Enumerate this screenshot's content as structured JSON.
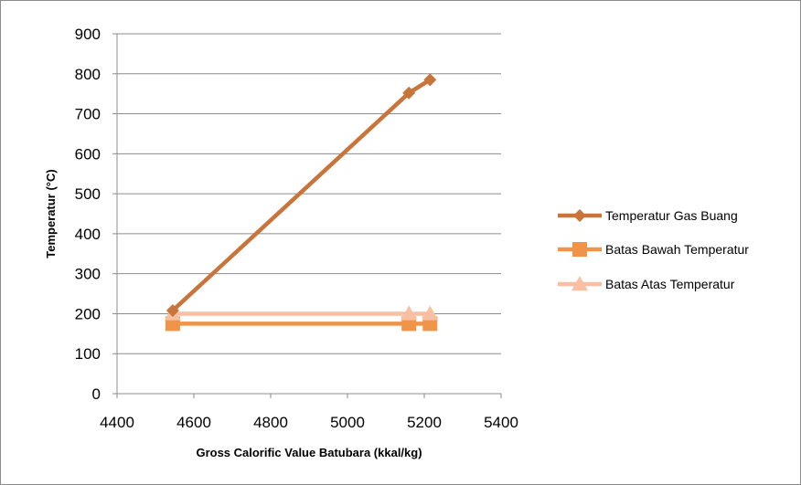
{
  "chart_data": {
    "type": "line",
    "xlabel": "Gross Calorific Value Batubara (kkal/kg)",
    "ylabel": "Temperatur (°C)",
    "xlim": [
      4400,
      5400
    ],
    "ylim": [
      0,
      900
    ],
    "xticks": [
      4400,
      4600,
      4800,
      5000,
      5200,
      5400
    ],
    "yticks": [
      0,
      100,
      200,
      300,
      400,
      500,
      600,
      700,
      800,
      900
    ],
    "grid": "horizontal",
    "legend_position": "right",
    "series": [
      {
        "name": "Temperatur Gas Buang",
        "color": "#c8743a",
        "marker": "diamond",
        "points": [
          [
            4545,
            208
          ],
          [
            5160,
            752
          ],
          [
            5215,
            785
          ]
        ]
      },
      {
        "name": "Batas Bawah Temperatur",
        "color": "#f0944a",
        "marker": "square",
        "points": [
          [
            4545,
            175
          ],
          [
            5160,
            175
          ],
          [
            5215,
            175
          ]
        ]
      },
      {
        "name": "Batas Atas Temperatur",
        "color": "#f8bfa2",
        "marker": "triangle",
        "points": [
          [
            4545,
            200
          ],
          [
            5160,
            200
          ],
          [
            5215,
            200
          ]
        ]
      }
    ]
  }
}
